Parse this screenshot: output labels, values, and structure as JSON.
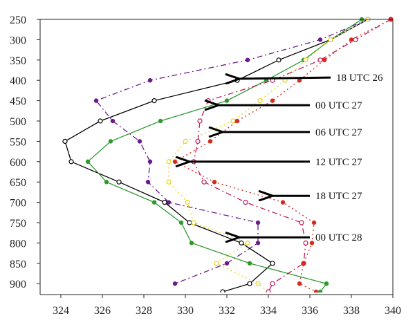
{
  "chart_data": {
    "type": "line",
    "title": "",
    "xlabel": "",
    "ylabel": "",
    "xlim": [
      323,
      340
    ],
    "ylim": [
      920,
      250
    ],
    "x_ticks": [
      324,
      326,
      328,
      330,
      332,
      334,
      336,
      338,
      340
    ],
    "x_tick_labels": [
      "324",
      "326",
      "328",
      "330",
      "332",
      "334",
      "336",
      "338",
      "340"
    ],
    "y_ticks": [
      250,
      300,
      350,
      400,
      450,
      500,
      550,
      600,
      650,
      700,
      750,
      800,
      850,
      900
    ],
    "y_tick_labels": [
      "250",
      "300",
      "350",
      "400",
      "450",
      "500",
      "550",
      "600",
      "650",
      "700",
      "750",
      "800",
      "850",
      "900"
    ],
    "grid": false,
    "series": [
      {
        "name": "18 UTC 26",
        "color": "#6a1b8a",
        "dash": "dashdot",
        "marker": "filled",
        "x": [
          338.8,
          336.5,
          333.0,
          328.3,
          325.7,
          326.5,
          327.8,
          328.3,
          328.2,
          329.2,
          333.5,
          333.5,
          332.0,
          329.5
        ],
        "y": [
          250,
          300,
          350,
          400,
          450,
          500,
          550,
          600,
          650,
          700,
          750,
          800,
          850,
          900
        ]
      },
      {
        "name": "00 UTC 27",
        "color": "#000000",
        "dash": "solid",
        "marker": "open",
        "x": [
          338.8,
          337.0,
          334.5,
          332.5,
          328.5,
          325.9,
          324.2,
          324.5,
          326.8,
          329.0,
          330.2,
          332.7,
          334.2,
          333.1,
          331.8
        ],
        "y": [
          250,
          300,
          350,
          400,
          450,
          500,
          550,
          600,
          650,
          700,
          750,
          800,
          850,
          900,
          920
        ]
      },
      {
        "name": "06 UTC 27",
        "color": "#2e9a2e",
        "dash": "solid",
        "marker": "filled",
        "x": [
          338.5,
          337.0,
          335.7,
          333.9,
          332.0,
          328.8,
          326.4,
          325.3,
          326.2,
          328.5,
          329.8,
          330.3,
          333.1,
          336.8,
          336.5
        ],
        "y": [
          250,
          300,
          350,
          400,
          450,
          500,
          550,
          600,
          650,
          700,
          750,
          800,
          850,
          900,
          920
        ]
      },
      {
        "name": "12 UTC 27",
        "color": "#e6d21e",
        "dash": "dotted",
        "marker": "open",
        "x": [
          338.8,
          337.0,
          335.8,
          334.8,
          333.6,
          332.3,
          330.0,
          329.2,
          329.2,
          330.1,
          330.4,
          333.0,
          331.5,
          333.5,
          334.0
        ],
        "y": [
          250,
          300,
          350,
          400,
          450,
          500,
          550,
          600,
          650,
          700,
          750,
          800,
          850,
          900,
          920
        ]
      },
      {
        "name": "18 UTC 27",
        "color": "#c2185b",
        "dash": "dashdot",
        "marker": "open",
        "x": [
          339.9,
          338.2,
          336.5,
          334.2,
          331.1,
          330.7,
          330.6,
          330.4,
          330.9,
          332.9,
          335.6,
          335.8,
          335.7,
          334.2,
          334.0
        ],
        "y": [
          250,
          300,
          350,
          400,
          450,
          500,
          550,
          600,
          650,
          700,
          750,
          800,
          850,
          900,
          920
        ]
      },
      {
        "name": "00 UTC 28",
        "color": "#d52b1e",
        "dash": "dotted",
        "marker": "filled",
        "x": [
          339.9,
          338.0,
          336.7,
          335.5,
          334.2,
          332.5,
          331.2,
          329.5,
          331.4,
          334.7,
          336.2,
          336.1,
          335.7,
          335.5,
          336.3
        ],
        "y": [
          250,
          300,
          350,
          400,
          450,
          500,
          550,
          600,
          650,
          700,
          750,
          800,
          850,
          900,
          920
        ]
      }
    ],
    "annotations": [
      {
        "text": "18 UTC 26",
        "arrow_from": [
          337.0,
          393
        ],
        "arrow_to": [
          332.6,
          396
        ]
      },
      {
        "text": "00 UTC 27",
        "arrow_from": [
          336.0,
          461
        ],
        "arrow_to": [
          331.6,
          461
        ]
      },
      {
        "text": "06 UTC 27",
        "arrow_from": [
          336.0,
          527
        ],
        "arrow_to": [
          331.8,
          527
        ]
      },
      {
        "text": "12 UTC 27",
        "arrow_from": [
          336.0,
          600
        ],
        "arrow_to": [
          330.2,
          600
        ]
      },
      {
        "text": "18 UTC 27",
        "arrow_from": [
          336.0,
          684
        ],
        "arrow_to": [
          334.2,
          684
        ]
      },
      {
        "text": "00 UTC 28",
        "arrow_from": [
          336.0,
          786
        ],
        "arrow_to": [
          332.6,
          786
        ]
      }
    ]
  }
}
